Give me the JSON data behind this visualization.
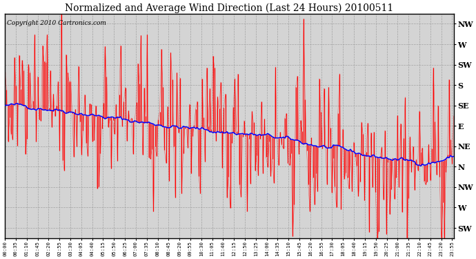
{
  "title": "Normalized and Average Wind Direction (Last 24 Hours) 20100511",
  "copyright": "Copyright 2010 Cartronics.com",
  "ytick_labels": [
    "NW",
    "W",
    "SW",
    "S",
    "SE",
    "E",
    "NE",
    "N",
    "NW",
    "W",
    "SW"
  ],
  "ytick_values": [
    10,
    9,
    8,
    7,
    6,
    5,
    4,
    3,
    2,
    1,
    0
  ],
  "ylim": [
    -0.5,
    10.5
  ],
  "plot_bg_color": "#d4d4d4",
  "red_color": "#ff0000",
  "blue_color": "#0000ff",
  "grid_color": "#999999",
  "title_fontsize": 10,
  "copyright_fontsize": 6.5,
  "n_points": 288,
  "minutes_per_tick": 35,
  "blue_trend_x": [
    0,
    20,
    40,
    60,
    80,
    100,
    120,
    150,
    170,
    190,
    210,
    230,
    250,
    265,
    275,
    288
  ],
  "blue_trend_y": [
    6.0,
    5.9,
    5.7,
    5.4,
    5.2,
    5.0,
    4.8,
    4.6,
    4.4,
    4.1,
    3.8,
    3.5,
    3.3,
    3.15,
    3.3,
    3.7
  ],
  "red_std_x": [
    0,
    30,
    31,
    80,
    81,
    130,
    131,
    180,
    181,
    220,
    221,
    260,
    288
  ],
  "red_std_y": [
    2.8,
    2.8,
    2.4,
    2.4,
    2.0,
    2.0,
    1.8,
    1.8,
    2.0,
    2.0,
    2.2,
    2.2,
    2.2
  ]
}
